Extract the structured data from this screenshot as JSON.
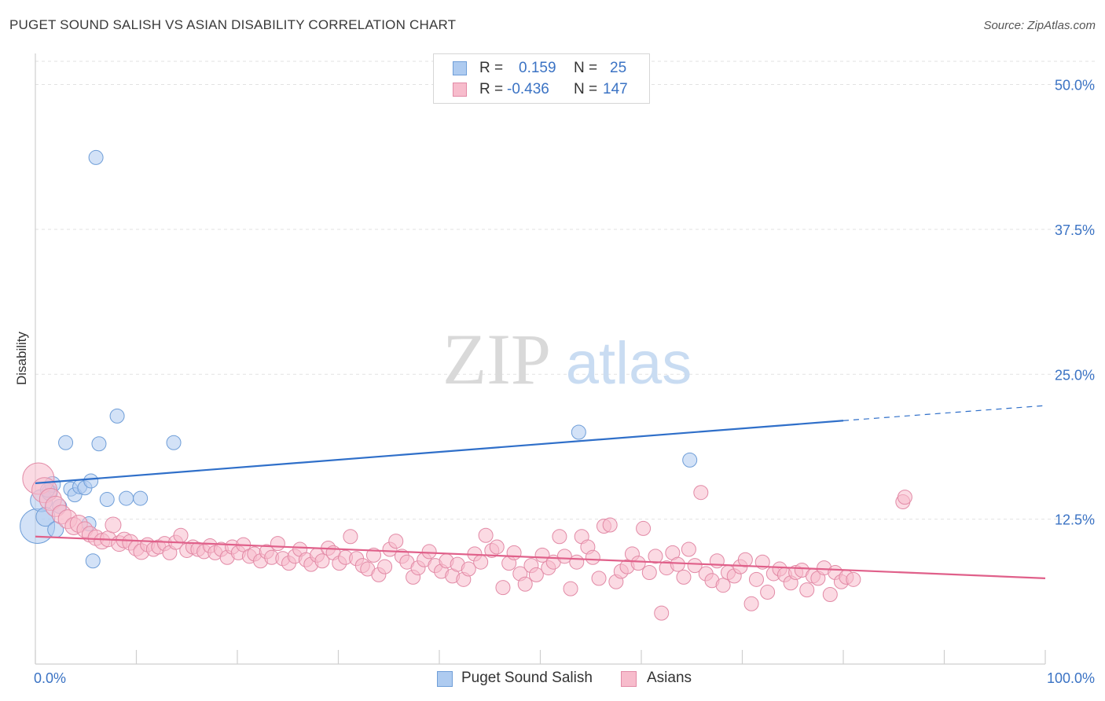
{
  "title": "PUGET SOUND SALISH VS ASIAN DISABILITY CORRELATION CHART",
  "source": "Source: ZipAtlas.com",
  "watermark": {
    "zip": "ZIP",
    "atlas": "atlas"
  },
  "stats": [
    {
      "r_label": "R =",
      "r_value": "0.159",
      "n_label": "N =",
      "n_value": "25",
      "color": "#aecbf0",
      "border": "#6f9ed8"
    },
    {
      "r_label": "R =",
      "r_value": "-0.436",
      "n_label": "N =",
      "n_value": "147",
      "color": "#f7bccc",
      "border": "#e28aa6"
    }
  ],
  "legend": [
    {
      "label": "Puget Sound Salish",
      "color": "#aecbf0",
      "border": "#6f9ed8"
    },
    {
      "label": "Asians",
      "color": "#f7bccc",
      "border": "#e28aa6"
    }
  ],
  "chart_data": {
    "type": "scatter",
    "title": "PUGET SOUND SALISH VS ASIAN DISABILITY CORRELATION CHART",
    "xlabel": "",
    "ylabel": "Disability",
    "xlim": [
      0,
      100
    ],
    "ylim": [
      0,
      52
    ],
    "x_tick_labels": [
      "0.0%",
      "100.0%"
    ],
    "y_ticks": [
      12.5,
      25.0,
      37.5,
      50.0
    ],
    "y_tick_labels": [
      "12.5%",
      "25.0%",
      "37.5%",
      "50.0%"
    ],
    "grid": true,
    "legend_position": "bottom",
    "series": [
      {
        "name": "Puget Sound Salish",
        "color": "#6f9ed8",
        "fill": "#aecbf0",
        "trend_color": "#2f6fc9",
        "trend": {
          "x0": 0,
          "y0": 15.6,
          "x1": 80,
          "y1": 21.0,
          "dash_to_x": 100,
          "dash_to_y": 22.3
        },
        "points": [
          [
            0.2,
            11.9,
            22
          ],
          [
            0.6,
            14.1,
            14
          ],
          [
            1.0,
            12.7,
            12
          ],
          [
            1.4,
            14.8,
            10
          ],
          [
            1.7,
            15.5,
            10
          ],
          [
            2.0,
            11.6,
            10
          ],
          [
            2.4,
            13.6,
            9
          ],
          [
            3.0,
            19.1,
            9
          ],
          [
            3.5,
            15.1,
            9
          ],
          [
            3.9,
            14.6,
            9
          ],
          [
            4.4,
            15.3,
            9
          ],
          [
            4.9,
            15.2,
            9
          ],
          [
            5.3,
            12.1,
            9
          ],
          [
            5.5,
            15.8,
            9
          ],
          [
            5.7,
            8.9,
            9
          ],
          [
            6.0,
            43.7,
            9
          ],
          [
            6.3,
            19.0,
            9
          ],
          [
            7.1,
            14.2,
            9
          ],
          [
            8.1,
            21.4,
            9
          ],
          [
            9.0,
            14.3,
            9
          ],
          [
            10.4,
            14.3,
            9
          ],
          [
            13.7,
            19.1,
            9
          ],
          [
            53.8,
            20.0,
            9
          ],
          [
            64.8,
            17.6,
            9
          ],
          [
            1.2,
            15.0,
            9
          ]
        ]
      },
      {
        "name": "Asians",
        "color": "#e28aa6",
        "fill": "#f7bccc",
        "trend_color": "#e0608a",
        "trend": {
          "x0": 0,
          "y0": 11.0,
          "x1": 100,
          "y1": 7.4
        },
        "points": [
          [
            0.3,
            16.0,
            20
          ],
          [
            0.9,
            15.0,
            16
          ],
          [
            1.5,
            14.2,
            14
          ],
          [
            2.0,
            13.6,
            13
          ],
          [
            2.6,
            12.9,
            12
          ],
          [
            3.2,
            12.5,
            12
          ],
          [
            3.8,
            11.9,
            11
          ],
          [
            4.3,
            12.1,
            11
          ],
          [
            4.9,
            11.6,
            10
          ],
          [
            5.4,
            11.2,
            10
          ],
          [
            6.0,
            10.9,
            10
          ],
          [
            6.6,
            10.6,
            10
          ],
          [
            7.2,
            10.8,
            10
          ],
          [
            7.7,
            12.0,
            10
          ],
          [
            8.3,
            10.4,
            10
          ],
          [
            8.8,
            10.7,
            10
          ],
          [
            9.4,
            10.5,
            10
          ],
          [
            10.0,
            10.0,
            10
          ],
          [
            10.5,
            9.7,
            10
          ],
          [
            11.1,
            10.3,
            9
          ],
          [
            11.7,
            9.9,
            9
          ],
          [
            12.2,
            10.1,
            9
          ],
          [
            12.8,
            10.4,
            9
          ],
          [
            13.3,
            9.6,
            9
          ],
          [
            13.9,
            10.5,
            9
          ],
          [
            14.4,
            11.1,
            9
          ],
          [
            15.0,
            9.8,
            9
          ],
          [
            15.6,
            10.1,
            9
          ],
          [
            16.1,
            9.9,
            9
          ],
          [
            16.7,
            9.7,
            9
          ],
          [
            17.3,
            10.2,
            9
          ],
          [
            17.8,
            9.6,
            9
          ],
          [
            18.4,
            9.9,
            9
          ],
          [
            19.0,
            9.2,
            9
          ],
          [
            19.5,
            10.1,
            9
          ],
          [
            20.1,
            9.6,
            9
          ],
          [
            20.6,
            10.3,
            9
          ],
          [
            21.2,
            9.3,
            9
          ],
          [
            21.7,
            9.5,
            9
          ],
          [
            22.3,
            8.9,
            9
          ],
          [
            22.9,
            9.7,
            9
          ],
          [
            23.4,
            9.2,
            9
          ],
          [
            24.0,
            10.4,
            9
          ],
          [
            24.5,
            9.1,
            9
          ],
          [
            25.1,
            8.7,
            9
          ],
          [
            25.7,
            9.3,
            9
          ],
          [
            26.2,
            9.9,
            9
          ],
          [
            26.8,
            9.0,
            9
          ],
          [
            27.3,
            8.6,
            9
          ],
          [
            27.9,
            9.4,
            9
          ],
          [
            28.4,
            8.9,
            9
          ],
          [
            29.0,
            10.0,
            9
          ],
          [
            29.5,
            9.6,
            9
          ],
          [
            30.1,
            8.7,
            9
          ],
          [
            30.7,
            9.2,
            9
          ],
          [
            31.2,
            11.0,
            9
          ],
          [
            31.8,
            9.1,
            9
          ],
          [
            32.4,
            8.5,
            9
          ],
          [
            32.9,
            8.2,
            9
          ],
          [
            33.5,
            9.4,
            9
          ],
          [
            34.0,
            7.7,
            9
          ],
          [
            34.6,
            8.4,
            9
          ],
          [
            35.1,
            9.9,
            9
          ],
          [
            35.7,
            10.6,
            9
          ],
          [
            36.3,
            9.3,
            9
          ],
          [
            36.8,
            8.8,
            9
          ],
          [
            37.4,
            7.5,
            9
          ],
          [
            37.9,
            8.3,
            9
          ],
          [
            38.5,
            9.0,
            9
          ],
          [
            39.0,
            9.7,
            9
          ],
          [
            39.6,
            8.5,
            9
          ],
          [
            40.2,
            8.0,
            9
          ],
          [
            40.7,
            8.9,
            9
          ],
          [
            41.3,
            7.6,
            9
          ],
          [
            41.8,
            8.6,
            9
          ],
          [
            42.4,
            7.3,
            9
          ],
          [
            42.9,
            8.2,
            9
          ],
          [
            43.5,
            9.5,
            9
          ],
          [
            44.1,
            8.8,
            9
          ],
          [
            44.6,
            11.1,
            9
          ],
          [
            45.2,
            9.8,
            9
          ],
          [
            45.7,
            10.1,
            9
          ],
          [
            46.3,
            6.6,
            9
          ],
          [
            46.9,
            8.7,
            9
          ],
          [
            47.4,
            9.6,
            9
          ],
          [
            48.0,
            7.8,
            9
          ],
          [
            48.5,
            6.9,
            9
          ],
          [
            49.1,
            8.5,
            9
          ],
          [
            49.6,
            7.7,
            9
          ],
          [
            50.2,
            9.4,
            9
          ],
          [
            50.8,
            8.3,
            9
          ],
          [
            51.3,
            8.8,
            9
          ],
          [
            51.9,
            11.0,
            9
          ],
          [
            52.4,
            9.3,
            9
          ],
          [
            53.0,
            6.5,
            9
          ],
          [
            53.6,
            8.8,
            9
          ],
          [
            54.1,
            11.0,
            9
          ],
          [
            54.7,
            10.1,
            9
          ],
          [
            55.2,
            9.2,
            9
          ],
          [
            55.8,
            7.4,
            9
          ],
          [
            56.3,
            11.9,
            9
          ],
          [
            56.9,
            12.0,
            9
          ],
          [
            57.5,
            7.1,
            9
          ],
          [
            58.0,
            8.0,
            9
          ],
          [
            58.6,
            8.4,
            9
          ],
          [
            59.1,
            9.5,
            9
          ],
          [
            59.7,
            8.7,
            9
          ],
          [
            60.2,
            11.7,
            9
          ],
          [
            60.8,
            7.9,
            9
          ],
          [
            61.4,
            9.3,
            9
          ],
          [
            62.0,
            4.4,
            9
          ],
          [
            62.5,
            8.3,
            9
          ],
          [
            63.1,
            9.6,
            9
          ],
          [
            63.6,
            8.6,
            9
          ],
          [
            64.2,
            7.5,
            9
          ],
          [
            64.7,
            9.9,
            9
          ],
          [
            65.3,
            8.5,
            9
          ],
          [
            65.9,
            14.8,
            9
          ],
          [
            66.4,
            7.8,
            9
          ],
          [
            67.0,
            7.2,
            9
          ],
          [
            67.5,
            8.9,
            9
          ],
          [
            68.1,
            6.8,
            9
          ],
          [
            68.6,
            7.9,
            9
          ],
          [
            69.2,
            7.6,
            9
          ],
          [
            69.8,
            8.4,
            9
          ],
          [
            70.3,
            9.0,
            9
          ],
          [
            70.9,
            5.2,
            9
          ],
          [
            71.4,
            7.3,
            9
          ],
          [
            72.0,
            8.8,
            9
          ],
          [
            72.5,
            6.2,
            9
          ],
          [
            73.1,
            7.8,
            9
          ],
          [
            73.7,
            8.2,
            9
          ],
          [
            74.2,
            7.7,
            9
          ],
          [
            74.8,
            7.0,
            9
          ],
          [
            75.3,
            7.9,
            9
          ],
          [
            75.9,
            8.1,
            9
          ],
          [
            76.4,
            6.4,
            9
          ],
          [
            77.0,
            7.6,
            9
          ],
          [
            77.5,
            7.4,
            9
          ],
          [
            78.1,
            8.3,
            9
          ],
          [
            78.7,
            6.0,
            9
          ],
          [
            79.2,
            7.9,
            9
          ],
          [
            79.8,
            7.1,
            9
          ],
          [
            80.3,
            7.5,
            9
          ],
          [
            81.0,
            7.3,
            9
          ],
          [
            85.9,
            14.0,
            9
          ],
          [
            86.1,
            14.4,
            9
          ]
        ]
      }
    ]
  }
}
